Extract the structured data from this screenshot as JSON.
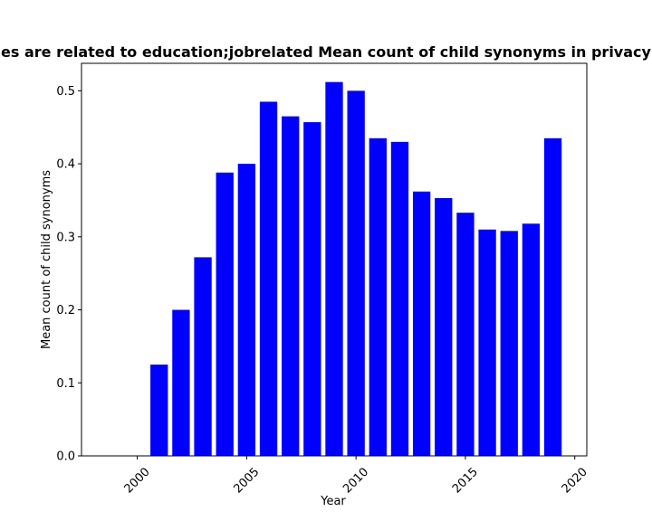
{
  "chart_data": {
    "type": "bar",
    "title": "es are related to education;jobrelated Mean count of child synonyms in privacy",
    "xlabel": "Year",
    "ylabel": "Mean count of child synonyms",
    "x": [
      2001,
      2002,
      2003,
      2004,
      2005,
      2006,
      2007,
      2008,
      2009,
      2010,
      2011,
      2012,
      2013,
      2014,
      2015,
      2016,
      2017,
      2018,
      2019
    ],
    "values": [
      0.125,
      0.2,
      0.272,
      0.388,
      0.4,
      0.485,
      0.465,
      0.457,
      0.512,
      0.5,
      0.435,
      0.43,
      0.362,
      0.353,
      0.333,
      0.31,
      0.308,
      0.318,
      0.435
    ],
    "xlim": [
      1997.45,
      2020.55
    ],
    "ylim": [
      0,
      0.5376
    ],
    "xticks": [
      "2000",
      "2005",
      "2010",
      "2015",
      "2020"
    ],
    "yticks": [
      "0.0",
      "0.1",
      "0.2",
      "0.3",
      "0.4",
      "0.5"
    ],
    "bar_color": "#0000ff",
    "grid": false,
    "legend": "none"
  }
}
